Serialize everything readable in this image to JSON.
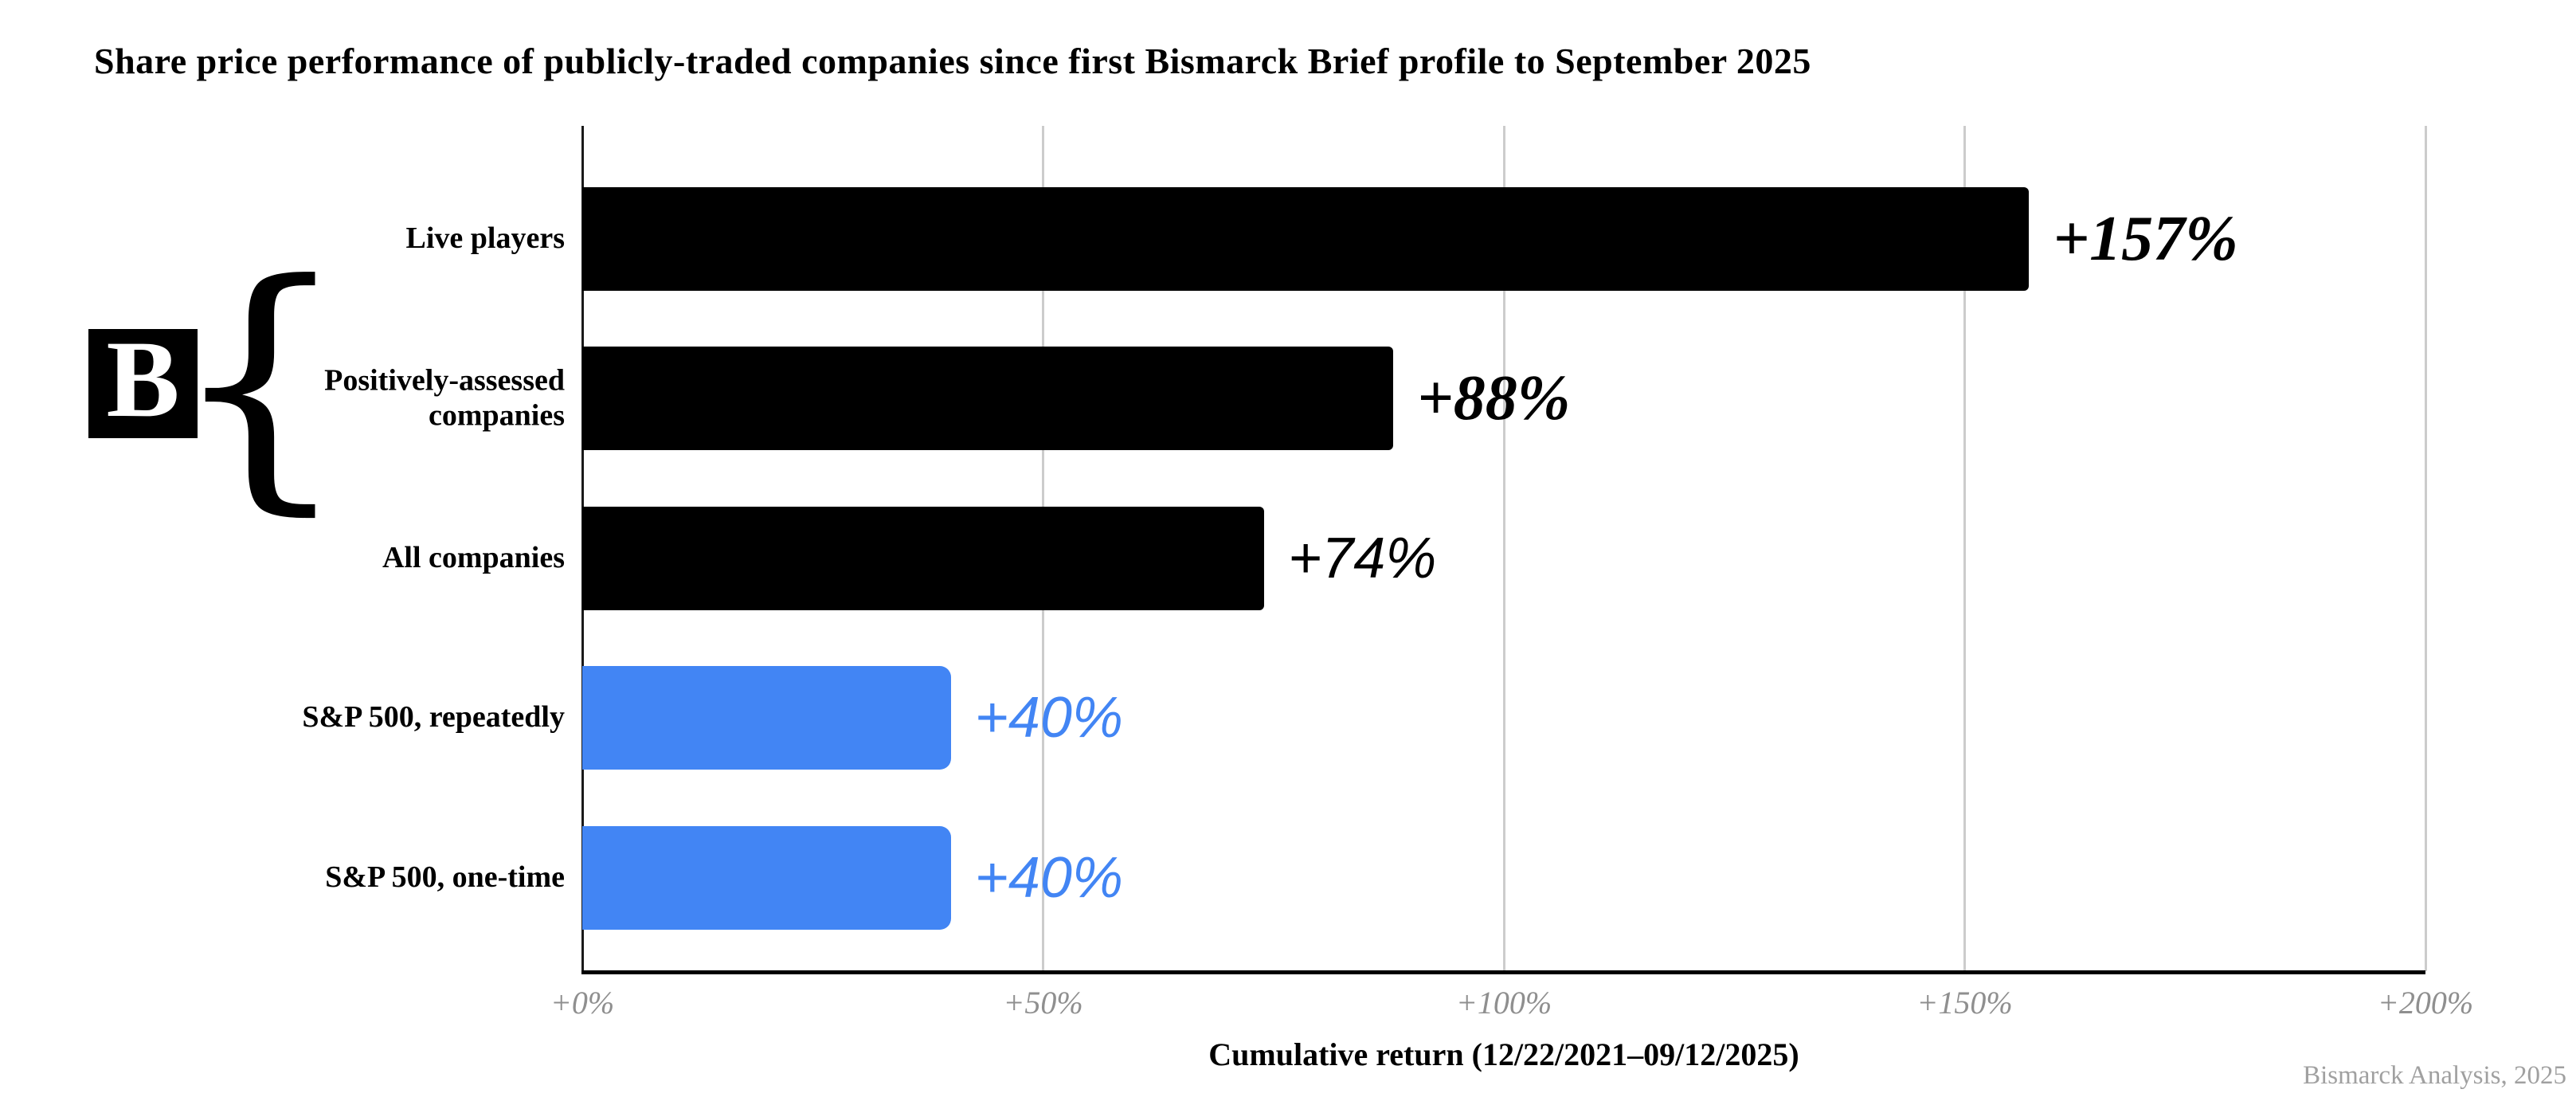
{
  "title": "Share price performance of publicly-traded companies since first Bismarck Brief profile to September 2025",
  "logo": {
    "letter": "B",
    "brace": "{"
  },
  "chart_data": {
    "type": "bar",
    "orientation": "horizontal",
    "title": "Share price performance of publicly-traded companies since first Bismarck Brief profile to September 2025",
    "xlabel": "Cumulative return (12/22/2021–09/12/2025)",
    "xlim": [
      0,
      200
    ],
    "grid": true,
    "x_tick_values": [
      0,
      50,
      100,
      150,
      200
    ],
    "x_tick_labels": [
      "+0%",
      "+50%",
      "+100%",
      "+150%",
      "+200%"
    ],
    "categories": [
      "Live players",
      "Positively-assessed companies",
      "All companies",
      "S&P 500, repeatedly",
      "S&P 500, one-time"
    ],
    "values": [
      157,
      88,
      74,
      40,
      40
    ],
    "value_labels": [
      "+157%",
      "+88%",
      "+74%",
      "+40%",
      "+40%"
    ],
    "bar_colors": [
      "#000000",
      "#000000",
      "#000000",
      "#4285F4",
      "#4285F4"
    ],
    "value_label_colors": [
      "#000000",
      "#000000",
      "#000000",
      "#4285F4",
      "#4285F4"
    ],
    "value_label_fonts": [
      "serif-italic",
      "serif-italic",
      "sans-italic",
      "sans-italic",
      "sans-italic"
    ],
    "source": "Bismarck Analysis, 2025"
  },
  "colors": {
    "bar_black": "#000000",
    "bar_blue": "#4285F4",
    "gridline": "#CCCCCC",
    "axis_line": "#1A1A1A",
    "tick_text": "#8F8F8F",
    "source_text": "#A0A0A0"
  }
}
